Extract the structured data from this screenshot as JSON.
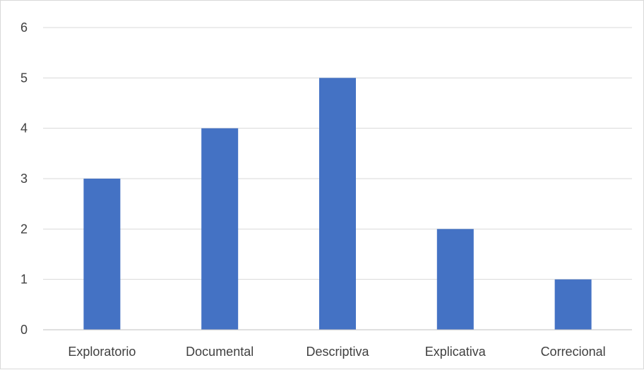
{
  "chart_data": {
    "type": "bar",
    "title": "",
    "xlabel": "",
    "ylabel": "",
    "categories": [
      "Exploratorio",
      "Documental",
      "Descriptiva",
      "Explicativa",
      "Correcional"
    ],
    "values": [
      3,
      4,
      5,
      2,
      1
    ],
    "ylim": [
      0,
      6
    ],
    "yticks": [
      "0",
      "1",
      "2",
      "3",
      "4",
      "5",
      "6"
    ],
    "grid": true,
    "legend": "none",
    "bar_color": "#4472C4"
  }
}
